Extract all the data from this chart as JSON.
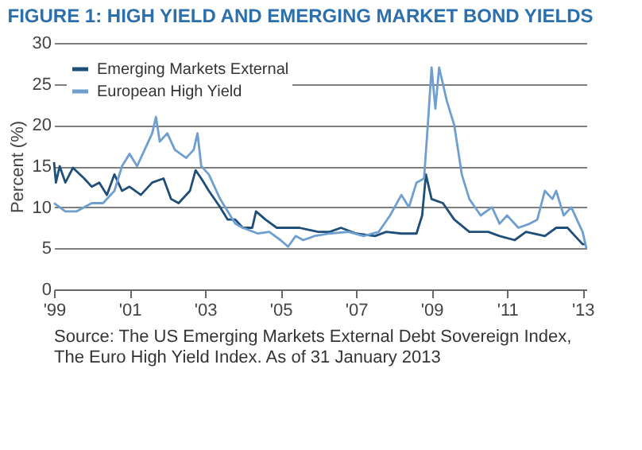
{
  "chart_data": {
    "type": "line",
    "title": "FIGURE 1: HIGH YIELD AND EMERGING MARKET BOND YIELDS",
    "ylabel": "Percent (%)",
    "xlim": [
      1999,
      2013.1
    ],
    "xticks": [
      {
        "value": 1999,
        "label": "'99"
      },
      {
        "value": 2001,
        "label": "'01"
      },
      {
        "value": 2003,
        "label": "'03"
      },
      {
        "value": 2005,
        "label": "'05"
      },
      {
        "value": 2007,
        "label": "'07"
      },
      {
        "value": 2009,
        "label": "'09"
      },
      {
        "value": 2011,
        "label": "'11"
      },
      {
        "value": 2013,
        "label": "'13"
      }
    ],
    "ylim": [
      0,
      30
    ],
    "yticks": [
      0,
      5,
      10,
      15,
      20,
      25,
      30
    ],
    "grid": "y",
    "legend": "top left",
    "line_style": "solid",
    "marker": "none",
    "series": [
      {
        "name": "Emerging Markets External",
        "color": "#1f4e79",
        "x": [
          1999.0,
          1999.05,
          1999.15,
          1999.3,
          1999.5,
          1999.8,
          2000.0,
          2000.2,
          2000.4,
          2000.6,
          2000.8,
          2001.0,
          2001.3,
          2001.6,
          2001.9,
          2002.1,
          2002.3,
          2002.6,
          2002.75,
          2002.9,
          2003.1,
          2003.4,
          2003.6,
          2003.8,
          2004.0,
          2004.25,
          2004.35,
          2004.6,
          2004.9,
          2005.2,
          2005.5,
          2005.8,
          2006.0,
          2006.3,
          2006.6,
          2007.0,
          2007.5,
          2007.8,
          2008.2,
          2008.6,
          2008.75,
          2008.85,
          2009.0,
          2009.3,
          2009.6,
          2010.0,
          2010.5,
          2010.8,
          2011.2,
          2011.5,
          2012.0,
          2012.3,
          2012.6,
          2012.8,
          2013.0,
          2013.1
        ],
        "values": [
          15.5,
          13,
          15,
          13,
          14.8,
          13.5,
          12.5,
          13,
          11.5,
          14,
          12,
          12.5,
          11.5,
          13,
          13.5,
          11,
          10.5,
          12,
          14.5,
          13.5,
          12,
          10,
          8.5,
          8.5,
          7.5,
          7.5,
          9.5,
          8.5,
          7.5,
          7.5,
          7.5,
          7.2,
          7,
          7,
          7.5,
          6.8,
          6.5,
          7,
          6.8,
          6.8,
          9,
          14,
          11,
          10.5,
          8.5,
          7,
          7,
          6.5,
          6,
          7,
          6.5,
          7.5,
          7.5,
          6.5,
          5.5,
          5.5
        ]
      },
      {
        "name": "European High Yield",
        "color": "#6f9fcf",
        "x": [
          1999.0,
          1999.3,
          1999.6,
          2000.0,
          2000.3,
          2000.6,
          2000.8,
          2001.0,
          2001.2,
          2001.4,
          2001.6,
          2001.7,
          2001.8,
          2002.0,
          2002.2,
          2002.5,
          2002.7,
          2002.8,
          2002.9,
          2003.1,
          2003.4,
          2003.6,
          2003.8,
          2004.0,
          2004.4,
          2004.7,
          2005.0,
          2005.2,
          2005.4,
          2005.6,
          2005.9,
          2006.3,
          2006.8,
          2007.2,
          2007.6,
          2007.9,
          2008.2,
          2008.4,
          2008.6,
          2008.8,
          2008.9,
          2009.0,
          2009.1,
          2009.2,
          2009.4,
          2009.6,
          2009.8,
          2010.0,
          2010.3,
          2010.6,
          2010.8,
          2011.0,
          2011.3,
          2011.6,
          2011.8,
          2012.0,
          2012.2,
          2012.3,
          2012.5,
          2012.7,
          2012.9,
          2013.0,
          2013.1
        ],
        "values": [
          10.5,
          9.5,
          9.5,
          10.5,
          10.5,
          12,
          15,
          16.5,
          15,
          17,
          19,
          21,
          18,
          19,
          17,
          16,
          17,
          19,
          15,
          14,
          11,
          9.5,
          8,
          7.5,
          6.8,
          7,
          6,
          5.2,
          6.5,
          6,
          6.5,
          6.8,
          7,
          6.5,
          7,
          9,
          11.5,
          10,
          13,
          13.5,
          20,
          27,
          22,
          27,
          23,
          20,
          14,
          11,
          9,
          10,
          8,
          9,
          7.5,
          8,
          8.5,
          12,
          11,
          12,
          9,
          10,
          8,
          7,
          5
        ]
      }
    ],
    "annotations": [
      "Source: The US Emerging Markets External Debt Sovereign Index, The Euro High Yield Index. As of 31 January 2013"
    ]
  }
}
